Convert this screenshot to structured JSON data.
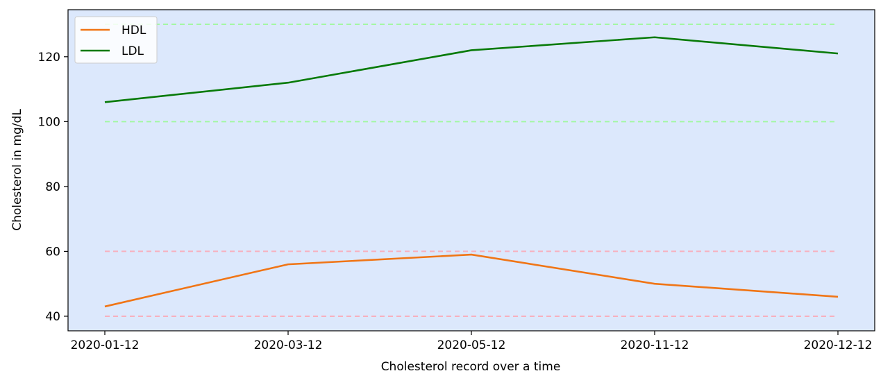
{
  "chart_data": {
    "type": "line",
    "title": "",
    "xlabel": "Cholesterol record over a time",
    "ylabel": "Cholesterol in mg/dL",
    "x": [
      "2020-01-12",
      "2020-03-12",
      "2020-05-12",
      "2020-11-12",
      "2020-12-12"
    ],
    "y_ticks": [
      40,
      60,
      80,
      100,
      120
    ],
    "y_tick_labels": [
      "40",
      "60",
      "80",
      "100",
      "120"
    ],
    "ylim": [
      35.5,
      134.5
    ],
    "grid": false,
    "legend_placement": "top-left",
    "background_color": "#dce8fc",
    "series": [
      {
        "name": "HDL",
        "color": "#f07516",
        "values": [
          43,
          56,
          59,
          50,
          46
        ]
      },
      {
        "name": "LDL",
        "color": "#077a07",
        "values": [
          106,
          112,
          122,
          126,
          121
        ]
      }
    ],
    "reference_lines": [
      {
        "value": 130,
        "color": "#a3f7a3",
        "style": "dashed"
      },
      {
        "value": 100,
        "color": "#a3f7a3",
        "style": "dashed"
      },
      {
        "value": 60,
        "color": "#f7b0be",
        "style": "dashed"
      },
      {
        "value": 40,
        "color": "#f7b0be",
        "style": "dashed"
      }
    ]
  }
}
